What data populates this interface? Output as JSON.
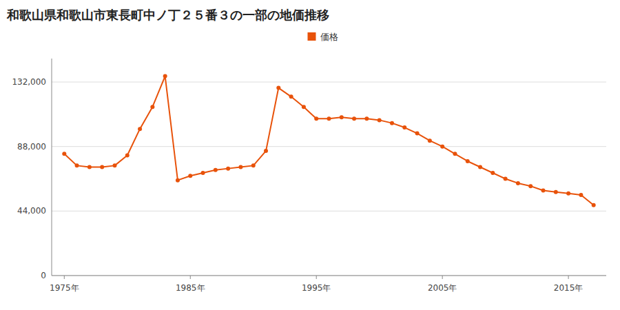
{
  "chart_data": {
    "type": "line",
    "title": "和歌山県和歌山市東長町中ノ丁２５番３の一部の地価推移",
    "x": [
      1975,
      1976,
      1977,
      1978,
      1979,
      1980,
      1981,
      1982,
      1983,
      1984,
      1985,
      1986,
      1987,
      1988,
      1989,
      1990,
      1991,
      1992,
      1993,
      1994,
      1995,
      1996,
      1997,
      1998,
      1999,
      2000,
      2001,
      2002,
      2003,
      2004,
      2005,
      2006,
      2007,
      2008,
      2009,
      2010,
      2011,
      2012,
      2013,
      2014,
      2015,
      2016,
      2017
    ],
    "series": [
      {
        "name": "価格",
        "color": "#E8520A",
        "values": [
          83000,
          75000,
          74000,
          74000,
          75000,
          82000,
          100000,
          115000,
          136000,
          65000,
          68000,
          70000,
          72000,
          73000,
          74000,
          75000,
          85000,
          128000,
          122000,
          115000,
          107000,
          107000,
          108000,
          107000,
          107000,
          106000,
          104000,
          101000,
          97000,
          92000,
          88000,
          83000,
          78000,
          74000,
          70000,
          66000,
          63000,
          61000,
          58000,
          57000,
          56000,
          55000,
          48000
        ]
      }
    ],
    "xlim": [
      1974,
      2018
    ],
    "xticks": [
      {
        "value": 1975,
        "label": "1975年"
      },
      {
        "value": 1985,
        "label": "1985年"
      },
      {
        "value": 1995,
        "label": "1995年"
      },
      {
        "value": 2005,
        "label": "2005年"
      },
      {
        "value": 2015,
        "label": "2015年"
      }
    ],
    "ylim": [
      0,
      148000
    ],
    "yticks": [
      0,
      {
        "value": 44000,
        "label": "44,000"
      },
      {
        "value": 88000,
        "label": "88,000"
      },
      {
        "value": 132000,
        "label": "132,000"
      }
    ],
    "grid": true,
    "legend": "top",
    "marker": "circle",
    "line_style": "solid"
  }
}
